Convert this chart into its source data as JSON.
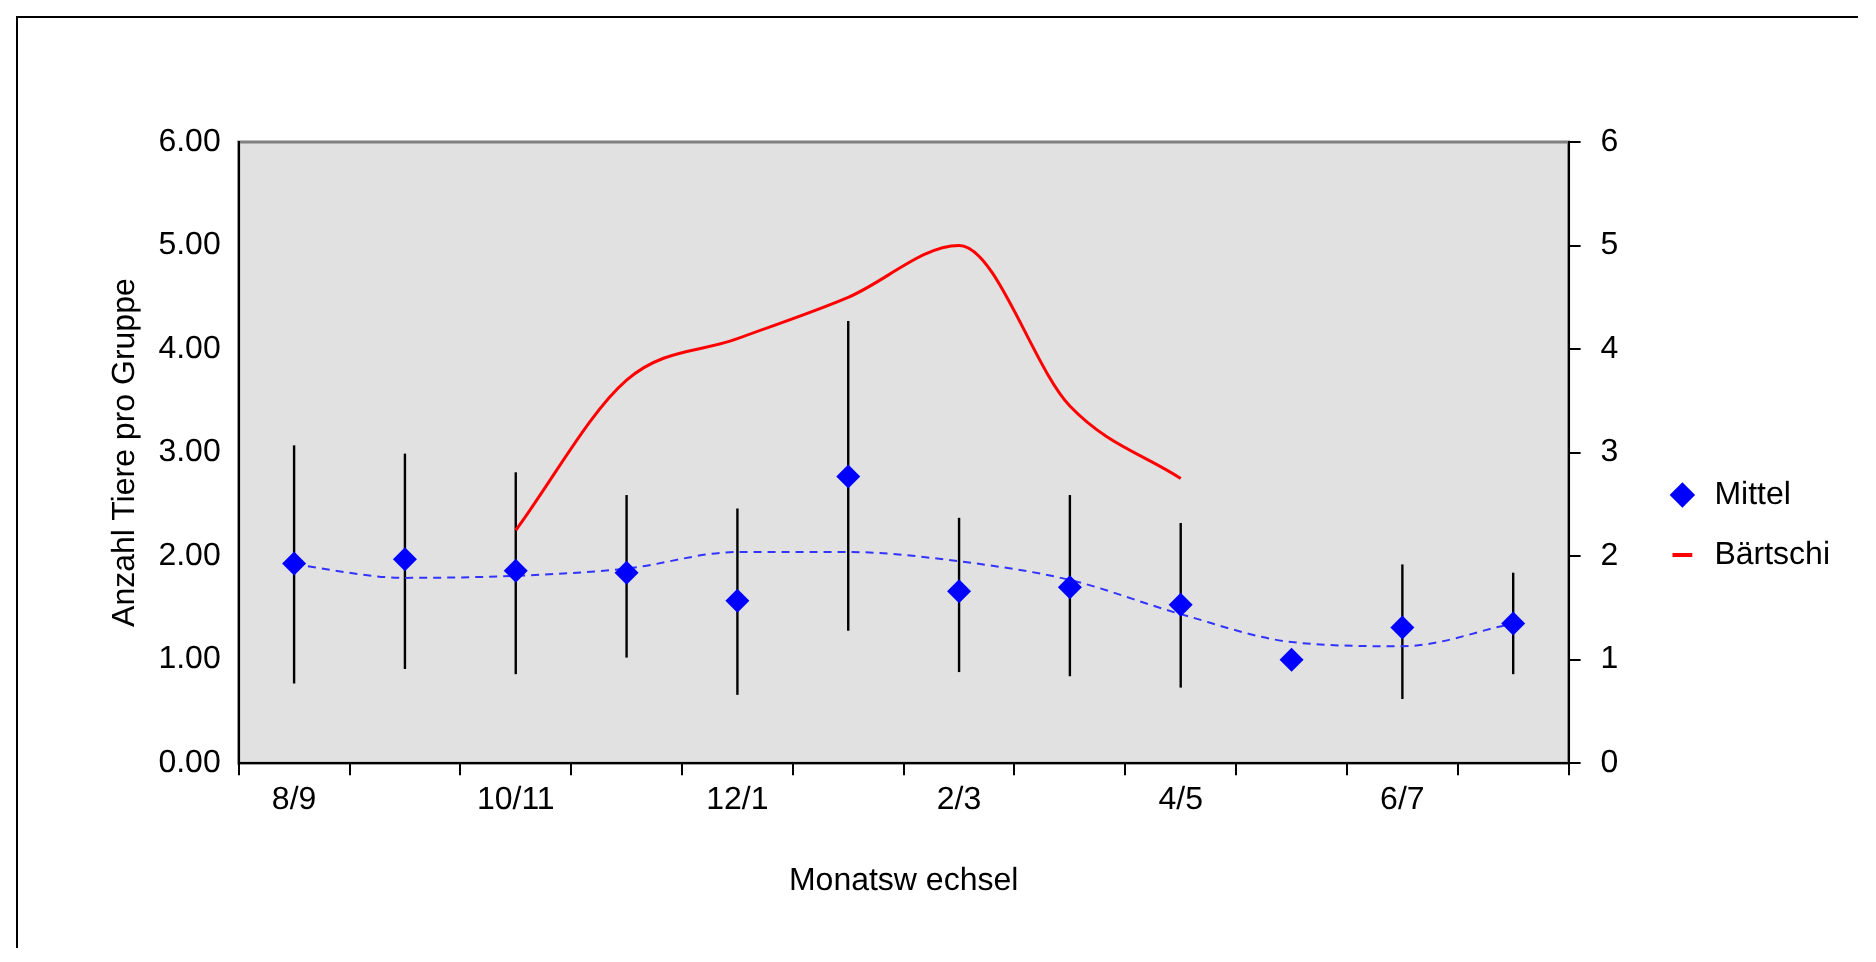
{
  "chart_data": {
    "type": "line",
    "xlabel": "Monatsw echsel",
    "ylabel": "Anzahl Tiere pro Gruppe",
    "categories": [
      "8/9",
      null,
      "10/11",
      null,
      "12/1",
      null,
      "2/3",
      null,
      "4/5",
      null,
      "6/7",
      null
    ],
    "series": [
      {
        "name": "Mittel",
        "type": "scatter",
        "marker": "diamond",
        "color": "#0000ff",
        "values": [
          1.93,
          1.97,
          1.86,
          1.84,
          1.57,
          2.77,
          1.66,
          1.7,
          1.53,
          1.0,
          1.31,
          1.35
        ],
        "errors": [
          [
            0.77,
            3.07
          ],
          [
            0.91,
            2.99
          ],
          [
            0.86,
            2.81
          ],
          [
            1.02,
            2.59
          ],
          [
            0.66,
            2.46
          ],
          [
            1.28,
            4.27
          ],
          [
            0.88,
            2.37
          ],
          [
            0.84,
            2.59
          ],
          [
            0.73,
            2.32
          ],
          null,
          [
            0.62,
            1.92
          ],
          [
            0.86,
            1.84
          ]
        ]
      },
      {
        "name": "Bärtschi",
        "marker": "none",
        "color": "#ff0000",
        "values": [
          null,
          null,
          2.25,
          3.7,
          4.1,
          4.5,
          5.0,
          3.45,
          2.75,
          null,
          null,
          null
        ]
      },
      {
        "marker": "none",
        "line_style": "dashed",
        "color": "#3333ff",
        "values": [
          1.92,
          1.79,
          1.81,
          1.88,
          2.04,
          2.04,
          1.95,
          1.77,
          1.44,
          1.17,
          1.13,
          1.35
        ]
      }
    ],
    "ylim": [
      0,
      6
    ],
    "yticks": [
      {
        "value": 0,
        "label": "0.00"
      },
      {
        "value": 1,
        "label": "1.00"
      },
      {
        "value": 2,
        "label": "2.00"
      },
      {
        "value": 3,
        "label": "3.00"
      },
      {
        "value": 4,
        "label": "4.00"
      },
      {
        "value": 5,
        "label": "5.00"
      },
      {
        "value": 6,
        "label": "6.00"
      }
    ],
    "y2lim": [
      0,
      6
    ],
    "y2ticks": [
      0,
      1,
      2,
      3,
      4,
      5,
      6
    ],
    "grid": false,
    "legend": "right"
  }
}
